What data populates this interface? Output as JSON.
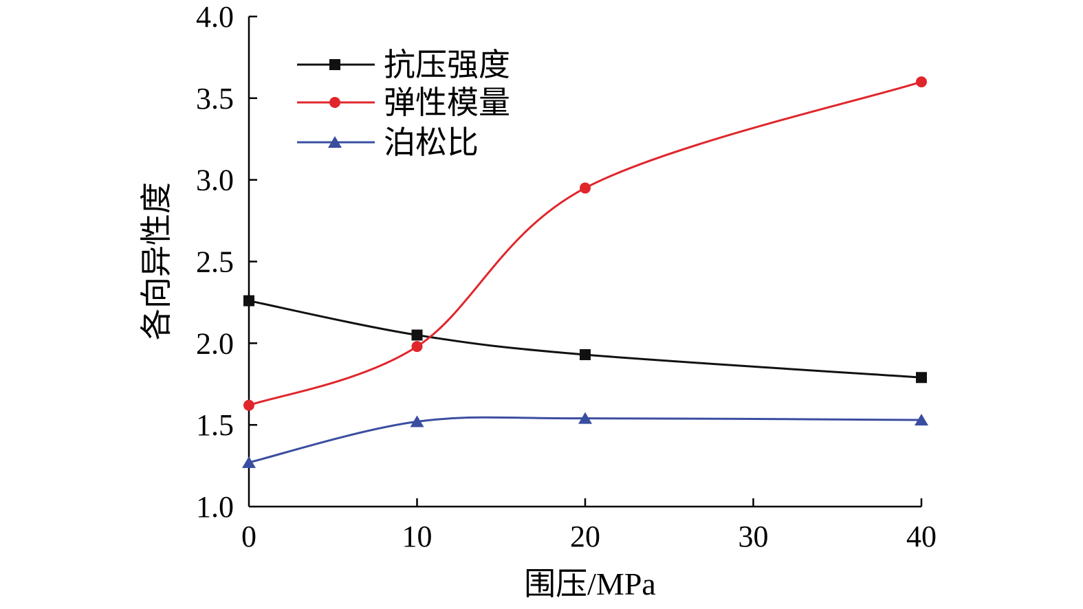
{
  "chart_data": {
    "type": "line",
    "title": "",
    "xlabel": "围压/MPa",
    "ylabel": "各向异性度",
    "x": [
      0,
      10,
      20,
      40
    ],
    "xlim": [
      0,
      40
    ],
    "ylim": [
      1.0,
      4.0
    ],
    "xticks": [
      "0",
      "10",
      "20",
      "30",
      "40"
    ],
    "xtick_values": [
      0,
      10,
      20,
      30,
      40
    ],
    "yticks": [
      "1.0",
      "1.5",
      "2.0",
      "2.5",
      "3.0",
      "3.5",
      "4.0"
    ],
    "ytick_values": [
      1.0,
      1.5,
      2.0,
      2.5,
      3.0,
      3.5,
      4.0
    ],
    "grid": false,
    "legend_position": "top-left",
    "series": [
      {
        "name": "抗压强度",
        "values": [
          2.26,
          2.05,
          1.93,
          1.79
        ],
        "color": "#111111",
        "marker": "square"
      },
      {
        "name": "弹性模量",
        "values": [
          1.62,
          1.98,
          2.95,
          3.6
        ],
        "color": "#e0262c",
        "marker": "circle"
      },
      {
        "name": "泊松比",
        "values": [
          1.27,
          1.52,
          1.54,
          1.53
        ],
        "color": "#3a4ea0",
        "marker": "triangle"
      }
    ]
  }
}
